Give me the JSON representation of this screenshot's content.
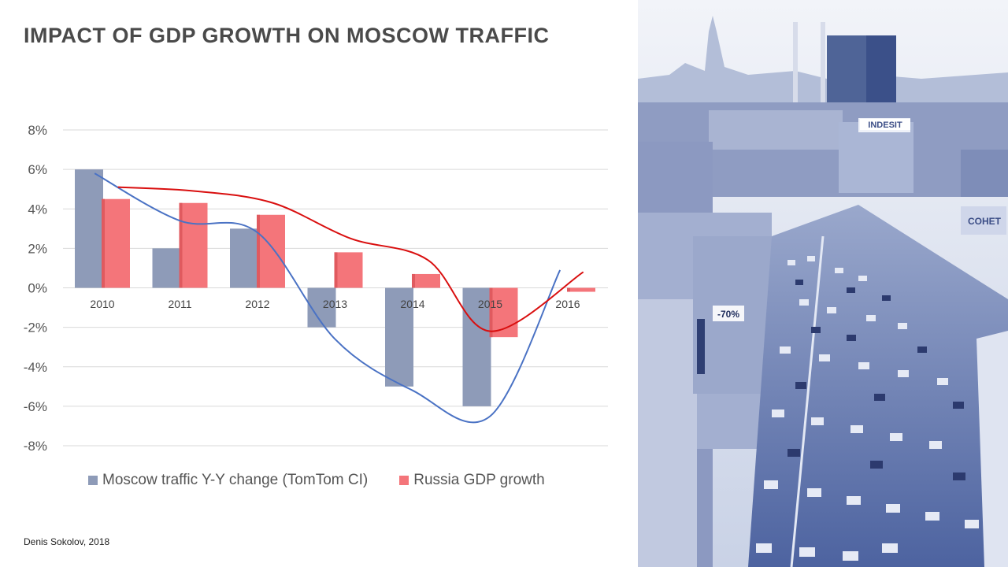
{
  "slide": {
    "title": "IMPACT OF GDP GROWTH ON MOSCOW TRAFFIC",
    "credit": "Denis Sokolov, 2018"
  },
  "photo": {
    "signs": [
      "INDESIT",
      "-70%",
      "COHET"
    ]
  },
  "chart_data": {
    "type": "bar",
    "title": "",
    "xlabel": "",
    "ylabel": "",
    "categories": [
      "2010",
      "2011",
      "2012",
      "2013",
      "2014",
      "2015",
      "2016"
    ],
    "y_ticks": [
      "8%",
      "6%",
      "4%",
      "2%",
      "0%",
      "-2%",
      "-4%",
      "-6%",
      "-8%"
    ],
    "ylim": [
      -8,
      8
    ],
    "grid": true,
    "legend_position": "bottom",
    "series": [
      {
        "name": "Moscow traffic Y-Y change (TomTom CI)",
        "color": "#8e9bb8",
        "values": [
          6,
          2,
          3,
          -2,
          -5,
          -6,
          0
        ]
      },
      {
        "name": "Russia GDP growth",
        "color": "#f4757a",
        "values": [
          4.5,
          4.3,
          3.7,
          1.8,
          0.7,
          -2.5,
          -0.2
        ]
      }
    ],
    "trendlines": [
      {
        "series": "Moscow traffic Y-Y change (TomTom CI)",
        "color": "#4a72c4",
        "points": [
          [
            2009.9,
            5.8
          ],
          [
            2011.0,
            3.4
          ],
          [
            2012.0,
            2.8
          ],
          [
            2013.0,
            -2.6
          ],
          [
            2014.0,
            -5.2
          ],
          [
            2015.0,
            -6.5
          ],
          [
            2015.9,
            0.9
          ]
        ]
      },
      {
        "series": "Russia GDP growth",
        "color": "#d90f0f",
        "points": [
          [
            2010.2,
            5.1
          ],
          [
            2011.2,
            4.9
          ],
          [
            2012.2,
            4.3
          ],
          [
            2013.2,
            2.5
          ],
          [
            2014.2,
            1.4
          ],
          [
            2015.0,
            -2.2
          ],
          [
            2016.2,
            0.8
          ]
        ]
      }
    ]
  }
}
